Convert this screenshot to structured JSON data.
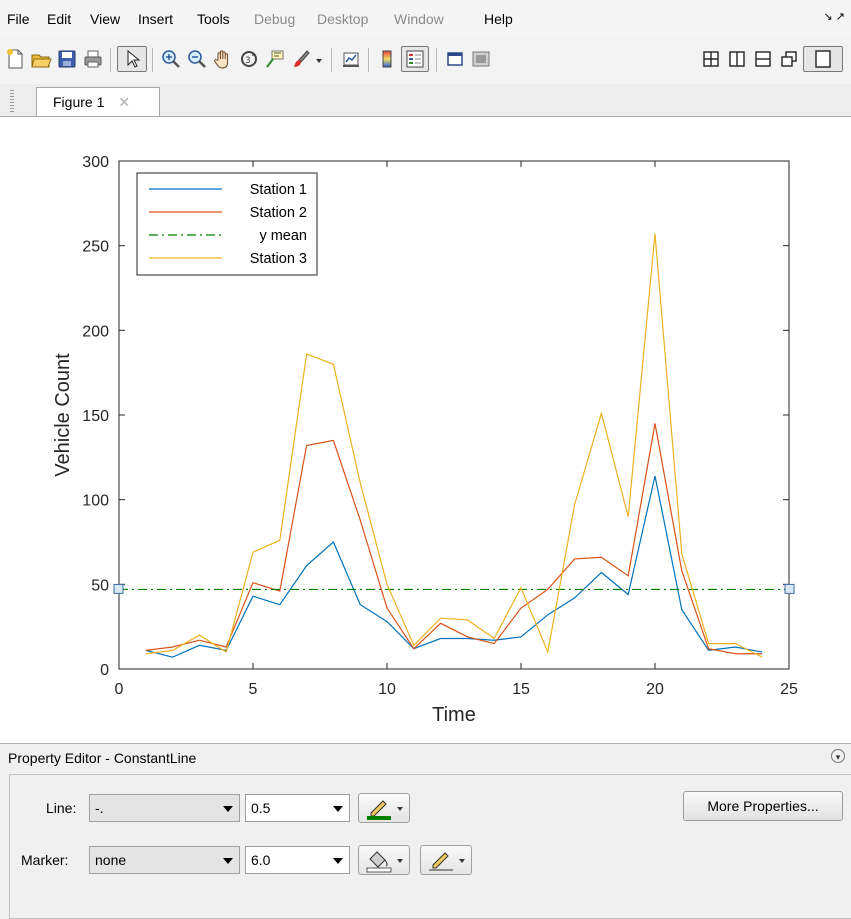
{
  "menu": {
    "items": [
      {
        "label": "File",
        "enabled": true
      },
      {
        "label": "Edit",
        "enabled": true
      },
      {
        "label": "View",
        "enabled": true
      },
      {
        "label": "Insert",
        "enabled": true
      },
      {
        "label": "Tools",
        "enabled": true
      },
      {
        "label": "Debug",
        "enabled": false
      },
      {
        "label": "Desktop",
        "enabled": false
      },
      {
        "label": "Window",
        "enabled": false
      },
      {
        "label": "Help",
        "enabled": true
      }
    ],
    "right_glyphs": "↘ ↗ "
  },
  "tab": {
    "label": "Figure 1",
    "close": "✕"
  },
  "chart_data": {
    "type": "line",
    "title": "",
    "xlabel": "Time",
    "ylabel": "Vehicle Count",
    "xlim": [
      0,
      25
    ],
    "ylim": [
      0,
      300
    ],
    "xticks": [
      0,
      5,
      10,
      15,
      20,
      25
    ],
    "yticks": [
      0,
      50,
      100,
      150,
      200,
      250,
      300
    ],
    "grid": false,
    "legend_location": "top-left",
    "x": [
      1,
      2,
      3,
      4,
      5,
      6,
      7,
      8,
      9,
      10,
      11,
      12,
      13,
      14,
      15,
      16,
      17,
      18,
      19,
      20,
      21,
      22,
      23,
      24
    ],
    "series": [
      {
        "name": "Station 1",
        "color": "#0072bd",
        "style": "solid",
        "values": [
          11,
          7,
          14,
          11,
          43,
          38,
          61,
          75,
          38,
          28,
          12,
          18,
          18,
          17,
          19,
          32,
          42,
          57,
          44,
          114,
          35,
          11,
          13,
          10
        ]
      },
      {
        "name": "Station 2",
        "color": "#d95319",
        "style": "solid",
        "values": [
          11,
          13,
          17,
          13,
          51,
          46,
          132,
          135,
          88,
          36,
          12,
          27,
          19,
          15,
          36,
          47,
          65,
          66,
          55,
          145,
          58,
          12,
          9,
          9
        ]
      },
      {
        "name": "y mean",
        "color": "#008000",
        "style": "dashdot",
        "constant": 47
      },
      {
        "name": "Station 3",
        "color": "#edb120",
        "style": "solid",
        "values": [
          9,
          11,
          20,
          10,
          69,
          76,
          186,
          180,
          110,
          50,
          14,
          30,
          29,
          18,
          48,
          10,
          97,
          151,
          90,
          257,
          68,
          15,
          15,
          7
        ]
      }
    ]
  },
  "property_editor": {
    "title": "Property Editor - ConstantLine",
    "line_label": "Line:",
    "line_style": "-.",
    "line_width": "0.5",
    "marker_label": "Marker:",
    "marker": "none",
    "marker_size": "6.0",
    "more_button": "More Properties...",
    "line_color": "#008000",
    "marker_face_color": "#ffffff",
    "collapse_glyph": "▾"
  }
}
